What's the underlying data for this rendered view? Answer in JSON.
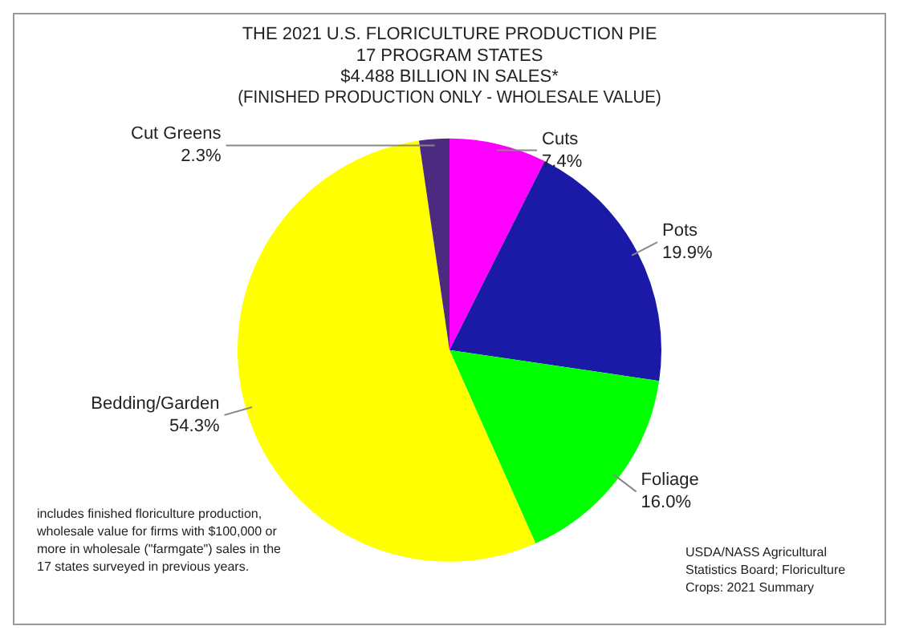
{
  "chart_data": {
    "type": "pie",
    "title": "THE 2021 U.S. FLORICULTURE PRODUCTION PIE",
    "subtitle": "17 PROGRAM STATES\n$4.488 BILLION IN SALES*\n(FINISHED PRODUCTION ONLY - WHOLESALE VALUE)",
    "categories": [
      "Cuts",
      "Pots",
      "Foliage",
      "Bedding/Garden",
      "Cut Greens"
    ],
    "values": [
      7.4,
      19.9,
      16.0,
      54.3,
      2.3
    ],
    "colors": [
      "#ff00ff",
      "#1a1aa6",
      "#00ff00",
      "#ffff00",
      "#4b2a7f"
    ],
    "value_labels": [
      "7.4%",
      "19.9%",
      "16.0%",
      "54.3%",
      "2.3%"
    ],
    "legend": false,
    "annotations": [
      "includes finished floriculture production, wholesale value for firms with $100,000 or more in wholesale (\"farmgate\") sales in the 17 states surveyed in previous years.",
      "USDA/NASS Agricultural Statistics Board; Floriculture Crops: 2021 Summary"
    ]
  }
}
